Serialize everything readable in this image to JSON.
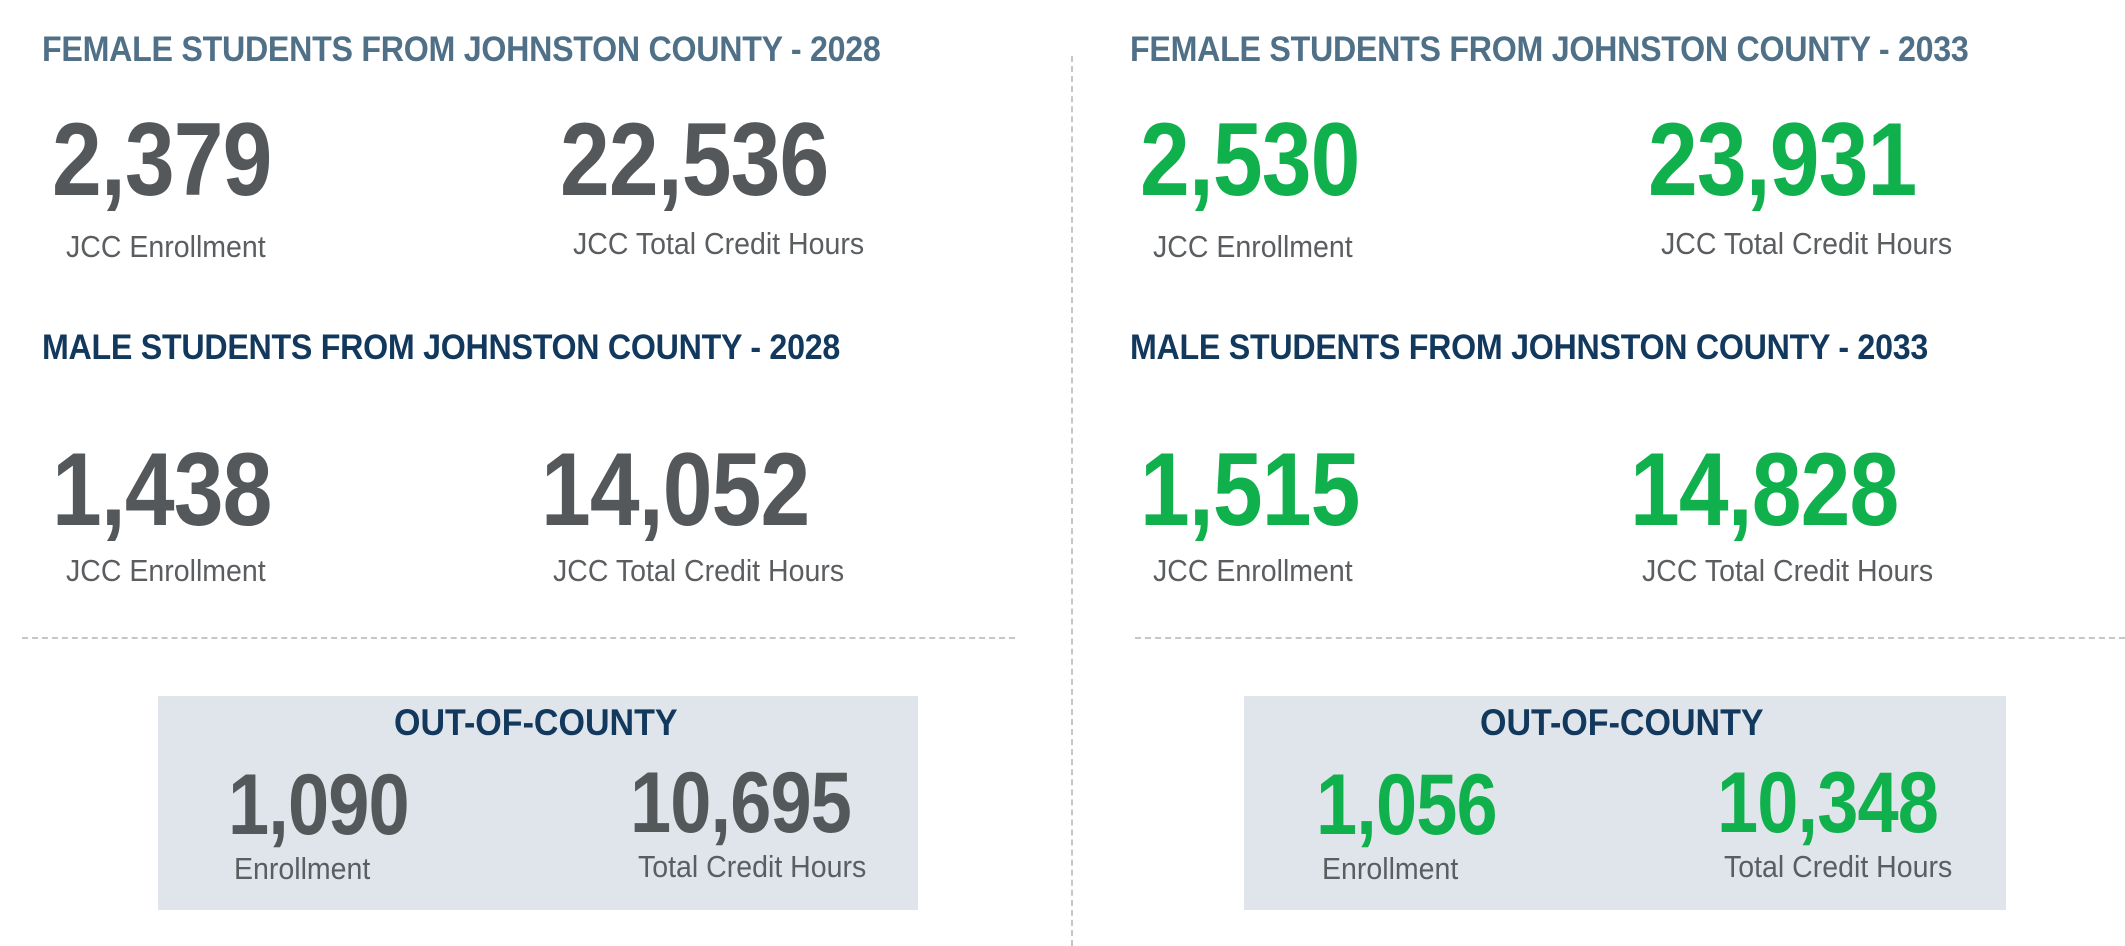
{
  "left": {
    "female_heading": "FEMALE STUDENTS FROM JOHNSTON COUNTY - 2028",
    "female_enrollment": "2,379",
    "female_enrollment_label": "JCC Enrollment",
    "female_hours": "22,536",
    "female_hours_label": "JCC Total Credit Hours",
    "male_heading": "MALE STUDENTS FROM JOHNSTON COUNTY - 2028",
    "male_enrollment": "1,438",
    "male_enrollment_label": "JCC Enrollment",
    "male_hours": "14,052",
    "male_hours_label": "JCC Total Credit Hours",
    "ooc_title": "OUT-OF-COUNTY",
    "ooc_enrollment": "1,090",
    "ooc_enrollment_label": "Enrollment",
    "ooc_hours": "10,695",
    "ooc_hours_label": "Total Credit Hours"
  },
  "right": {
    "female_heading": "FEMALE STUDENTS FROM JOHNSTON COUNTY - 2033",
    "female_enrollment": "2,530",
    "female_enrollment_label": "JCC Enrollment",
    "female_hours": "23,931",
    "female_hours_label": "JCC Total Credit Hours",
    "male_heading": "MALE STUDENTS FROM JOHNSTON COUNTY - 2033",
    "male_enrollment": "1,515",
    "male_enrollment_label": "JCC Enrollment",
    "male_hours": "14,828",
    "male_hours_label": "JCC Total Credit Hours",
    "ooc_title": "OUT-OF-COUNTY",
    "ooc_enrollment": "1,056",
    "ooc_enrollment_label": "Enrollment",
    "ooc_hours": "10,348",
    "ooc_hours_label": "Total Credit Hours"
  },
  "colors": {
    "heading_light": "#4f7087",
    "heading_dark": "#12395d",
    "value_2028": "#55585b",
    "value_2033": "#10b04d",
    "box_background": "#dfe5ea"
  }
}
